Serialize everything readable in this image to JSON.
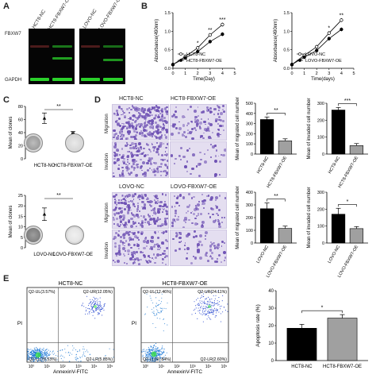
{
  "panels": {
    "A": {
      "letter": "A",
      "col_labels": [
        "HCT8-NC",
        "HCT8-FBXW7-OE",
        "LOVO-NC",
        "LOVO-FBXW7-OE"
      ],
      "row_labels": [
        "FBXW7",
        "GAPDH"
      ],
      "band_color": "#2bd12b",
      "faint_band_color": "#b23030"
    },
    "B": {
      "letter": "B",
      "chart_data": [
        {
          "type": "line",
          "x": [
            0,
            1,
            2,
            3,
            4
          ],
          "xlabel": "Time(Day)",
          "ylabel": "Absorbance(490nm)",
          "xlim": [
            0,
            5
          ],
          "ylim": [
            0.0,
            1.5
          ],
          "xticks": [
            "0",
            "1",
            "2",
            "3",
            "4",
            "5"
          ],
          "yticks": [
            "0.0",
            "0.5",
            "1.0",
            "1.5"
          ],
          "series": [
            {
              "name": "HCT8-NC",
              "marker": "circle-open",
              "values": [
                0.1,
                0.32,
                0.55,
                0.9,
                1.18
              ]
            },
            {
              "name": "HCT8-FBXW7-OE",
              "marker": "circle-filled",
              "values": [
                0.1,
                0.28,
                0.45,
                0.72,
                0.92
              ]
            }
          ],
          "annotations": [
            "*",
            "**",
            "***"
          ],
          "legend": "bottom-right"
        },
        {
          "type": "line",
          "x": [
            0,
            1,
            2,
            3,
            4
          ],
          "xlabel": "Time(days)",
          "ylabel": "Absorbance(490nm)",
          "xlim": [
            0,
            5
          ],
          "ylim": [
            0.0,
            1.5
          ],
          "xticks": [
            "0",
            "1",
            "2",
            "3",
            "4",
            "5"
          ],
          "yticks": [
            "0.0",
            "0.5",
            "1.0",
            "1.5"
          ],
          "series": [
            {
              "name": "LOVO-NC",
              "marker": "circle-open",
              "values": [
                0.1,
                0.35,
                0.58,
                0.95,
                1.3
              ]
            },
            {
              "name": "LOVO-FBXW7-OE",
              "marker": "circle-filled",
              "values": [
                0.1,
                0.3,
                0.48,
                0.8,
                1.05
              ]
            }
          ],
          "annotations": [
            "*",
            "**"
          ],
          "legend": "bottom-right"
        }
      ]
    },
    "C": {
      "letter": "C",
      "chart_data": [
        {
          "type": "scatter",
          "categories": [
            "HCT8-NC",
            "HCT8-FBXW7-OE"
          ],
          "ylabel": "Mean of clones",
          "ylim": [
            0,
            80
          ],
          "yticks": [
            "0",
            "20",
            "40",
            "60",
            "80"
          ],
          "values": [
            62,
            38
          ],
          "errors": [
            8,
            4
          ],
          "significance": "**"
        },
        {
          "type": "scatter",
          "categories": [
            "LOVO-NC",
            "LOVO-FBXW7-OE"
          ],
          "ylabel": "Mean of clones",
          "ylim": [
            0,
            25
          ],
          "yticks": [
            "0",
            "5",
            "10",
            "15",
            "20",
            "25"
          ],
          "values": [
            16,
            4
          ],
          "errors": [
            3,
            1
          ],
          "significance": "**"
        }
      ]
    },
    "D": {
      "letter": "D",
      "hct_labels": [
        "HCT8-NC",
        "HCT8-FBXW7-OE"
      ],
      "lovo_labels": [
        "LOVO-NC",
        "LOVO-FBXW7-OE"
      ],
      "row_labels": [
        "Migration",
        "Invation"
      ],
      "chart_data": [
        {
          "type": "bar",
          "categories": [
            "HCT8-NC",
            "HCT8-FBXW7-OE"
          ],
          "values": [
            340,
            130
          ],
          "errors": [
            25,
            20
          ],
          "ylabel": "Mean of migrated cell number",
          "ylim": [
            0,
            500
          ],
          "yticks": [
            "0",
            "100",
            "200",
            "300",
            "400",
            "500"
          ],
          "significance": "**",
          "colors": [
            "#000000",
            "#a0a0a0"
          ]
        },
        {
          "type": "bar",
          "categories": [
            "HCT8-NC",
            "HCT8-FBXW7-OE"
          ],
          "values": [
            260,
            50
          ],
          "errors": [
            15,
            12
          ],
          "ylabel": "Mean of invaded cell number",
          "ylim": [
            0,
            300
          ],
          "yticks": [
            "0",
            "100",
            "200",
            "300"
          ],
          "significance": "***",
          "colors": [
            "#000000",
            "#a0a0a0"
          ]
        },
        {
          "type": "bar",
          "categories": [
            "LOVO-NC",
            "LOVO-FBXW7-OE"
          ],
          "values": [
            270,
            115
          ],
          "errors": [
            45,
            18
          ],
          "ylabel": "Mean of migrated cell number",
          "ylim": [
            0,
            400
          ],
          "yticks": [
            "0",
            "100",
            "200",
            "300",
            "400"
          ],
          "significance": "**",
          "colors": [
            "#000000",
            "#a0a0a0"
          ]
        },
        {
          "type": "bar",
          "categories": [
            "LOVO-NC",
            "LOVO-FBXW7-OE"
          ],
          "values": [
            170,
            85
          ],
          "errors": [
            35,
            12
          ],
          "ylabel": "Mean of invaded cell number",
          "ylim": [
            0,
            300
          ],
          "yticks": [
            "0",
            "100",
            "200",
            "300"
          ],
          "significance": "*",
          "colors": [
            "#000000",
            "#a0a0a0"
          ]
        }
      ]
    },
    "E": {
      "letter": "E",
      "flow_titles": [
        "HCT8-NC",
        "HCT8-FBXW7-OE"
      ],
      "flow_xlabel": "AnnexinV-FITC",
      "flow_ylabel": "PI",
      "flow_xticks": [
        "10⁰",
        "10¹",
        "10²",
        "10³",
        "10⁴",
        "10⁵"
      ],
      "quadrants": [
        {
          "ul": "Q2-UL(3.57%)",
          "ur": "Q2-UR(12.05%)",
          "ll": "Q2-LL(78.53%)",
          "lr": "Q2-LR(5.85%)"
        },
        {
          "ul": "Q2-UL(12.46%)",
          "ur": "Q2-UR(24.11%)",
          "ll": "Q2-LL(60.84%)",
          "lr": "Q2-LR(2.60%)"
        }
      ],
      "chart_data": {
        "type": "bar",
        "categories": [
          "HCT8-NC",
          "HCT8-FBXW7-OE"
        ],
        "values": [
          18.5,
          24.3
        ],
        "errors": [
          2.2,
          2.0
        ],
        "ylabel": "Apoptosis rate (%)",
        "ylim": [
          0,
          40
        ],
        "yticks": [
          "0",
          "10",
          "20",
          "30",
          "40"
        ],
        "significance": "*",
        "colors": [
          "#000000",
          "#a0a0a0"
        ]
      }
    }
  }
}
